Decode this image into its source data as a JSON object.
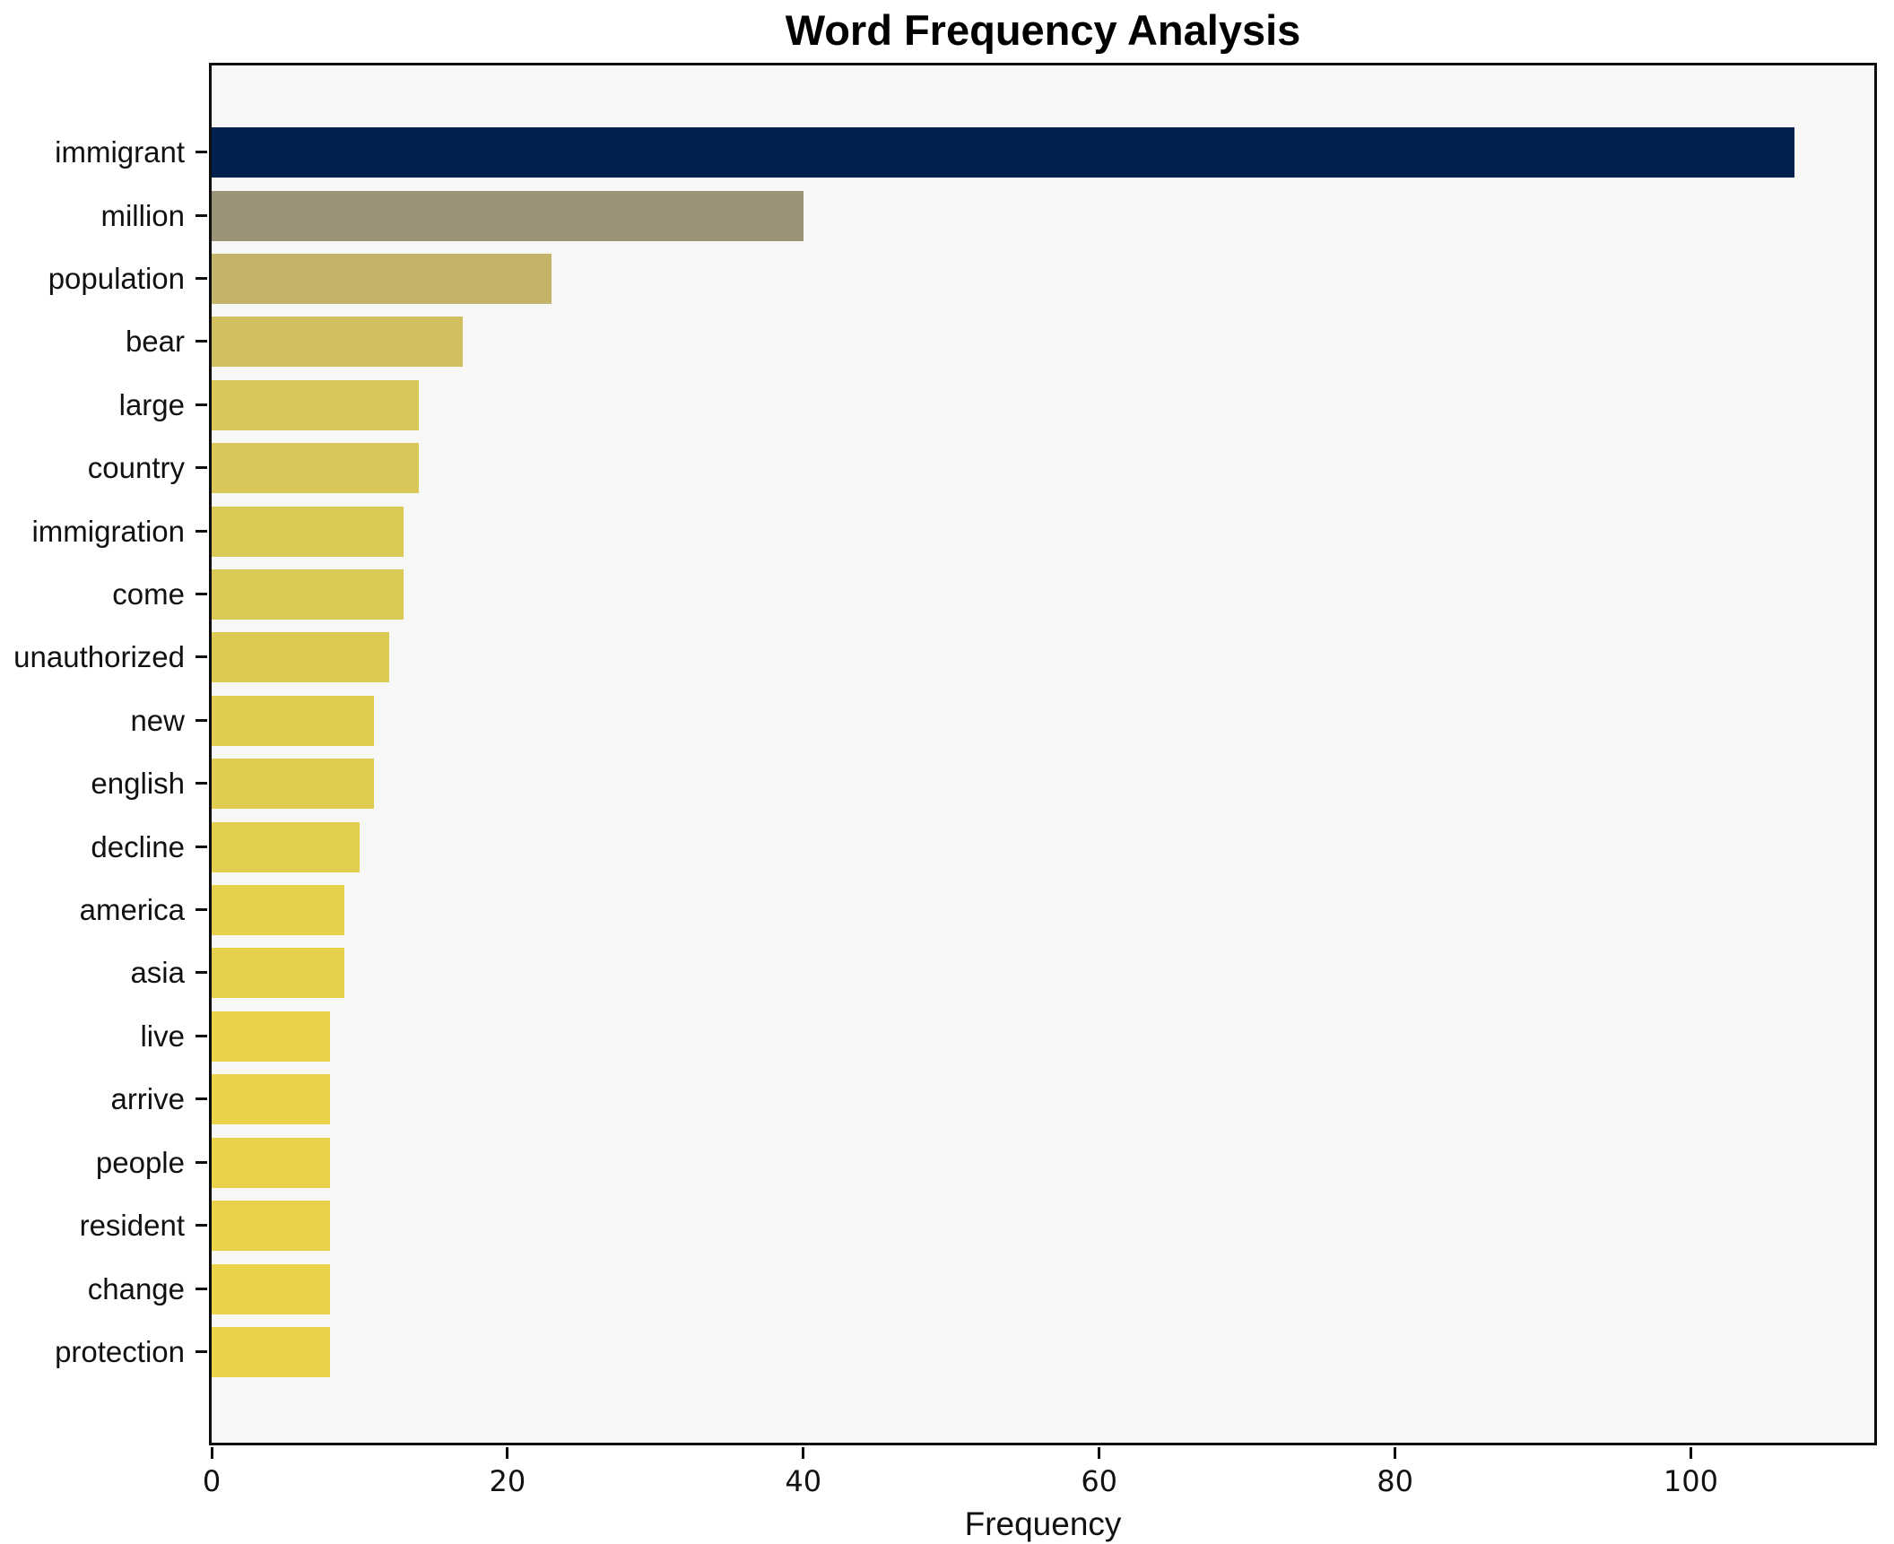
{
  "page": {
    "background": "#ffffff"
  },
  "chart_data": {
    "type": "bar",
    "orientation": "horizontal",
    "title": "Word Frequency Analysis",
    "xlabel": "Frequency",
    "ylabel": "",
    "categories": [
      "immigrant",
      "million",
      "population",
      "bear",
      "large",
      "country",
      "immigration",
      "come",
      "unauthorized",
      "new",
      "english",
      "decline",
      "america",
      "asia",
      "live",
      "arrive",
      "people",
      "resident",
      "change",
      "protection"
    ],
    "values": [
      107,
      40,
      23,
      17,
      14,
      14,
      13,
      13,
      12,
      11,
      11,
      10,
      9,
      9,
      8,
      8,
      8,
      8,
      8,
      8
    ],
    "bar_colors": [
      "#00214d",
      "#9b9377",
      "#c4b469",
      "#d2c05e",
      "#d9c75a",
      "#d9c75a",
      "#dbc955",
      "#dbc955",
      "#ddca52",
      "#e0cc50",
      "#e0cc50",
      "#e2ce4e",
      "#e5d04c",
      "#e5d04c",
      "#ebd24b",
      "#ebd24b",
      "#ebd24b",
      "#ebd24b",
      "#ebd24b",
      "#ebd24b"
    ],
    "x_ticks": [
      0,
      20,
      40,
      60,
      80,
      100
    ],
    "xlim": [
      0,
      112.4
    ],
    "grid": false,
    "legend": false,
    "plot_background": "#f7f7f5",
    "spine_color": "#0e0e0e"
  }
}
